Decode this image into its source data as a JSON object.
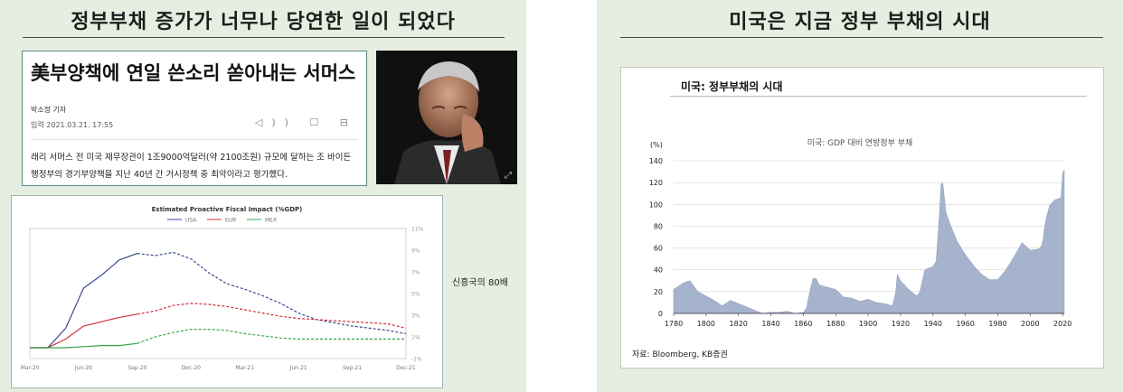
{
  "left_panel": {
    "title": "정부부채 증가가 너무나 당연한 일이 되었다",
    "article": {
      "headline": "美부양책에 연일 쓴소리 쏟아내는 서머스",
      "byline": "박소정 기자",
      "dateline": "입력 2021.03.21. 17:55",
      "tools": "◁)) ☐ ⊟",
      "body": "래리 서머스 전 미국 재무장관이 1조9000억달러(약 2100조원) 규모에 달하는 조 바이든 행정부의 경기부양책을 지난 40년 간 거시정책 중 최악이라고 평가했다."
    },
    "photo_expand_icon": "⤢",
    "side_note": "신흥국의 80배"
  },
  "right_panel": {
    "title": "미국은 지금 정부 부채의 시대",
    "chart_title": "미국: 정부부채의 시대",
    "source": "자료: Bloomberg, KB증권"
  },
  "colors": {
    "usa": "#3b4a8f",
    "eur": "#d1323b",
    "mex": "#3aa64a",
    "area": "#a6b3cc",
    "panel_bg": "#e5eee0"
  },
  "chart_data": [
    {
      "type": "line",
      "title": "Estimated Proactive Fiscal Impact (%GDP)",
      "x": [
        "Mar-20",
        "Apr-20",
        "May-20",
        "Jun-20",
        "Jul-20",
        "Aug-20",
        "Sep-20",
        "Oct-20",
        "Nov-20",
        "Dec-20",
        "Jan-21",
        "Feb-21",
        "Mar-21",
        "Apr-21",
        "May-21",
        "Jun-21",
        "Jul-21",
        "Aug-21",
        "Sep-21",
        "Oct-21",
        "Nov-21",
        "Dec-21"
      ],
      "xticks": [
        "Mar-20",
        "Jun-20",
        "Sep-20",
        "Dec-20",
        "Mar-21",
        "Jun-21",
        "Sep-21",
        "Dec-21"
      ],
      "ylim": [
        -1,
        11
      ],
      "yticks": [
        "11%",
        "9%",
        "7%",
        "5%",
        "3%",
        "1%",
        "-1%"
      ],
      "ytick_values": [
        11,
        9,
        7,
        5,
        3,
        1,
        -1
      ],
      "projection_from": "Sep-20",
      "series": [
        {
          "name": "USA",
          "values": [
            0,
            0,
            1.8,
            5.5,
            6.7,
            8.1,
            8.7,
            8.5,
            8.8,
            8.2,
            6.9,
            5.9,
            5.4,
            4.8,
            4.1,
            3.2,
            2.6,
            2.3,
            2.0,
            1.8,
            1.6,
            1.3
          ]
        },
        {
          "name": "EUR",
          "values": [
            0,
            0,
            0.8,
            2.0,
            2.4,
            2.8,
            3.1,
            3.4,
            3.9,
            4.1,
            4.0,
            3.8,
            3.5,
            3.2,
            2.9,
            2.7,
            2.6,
            2.5,
            2.4,
            2.3,
            2.2,
            1.8
          ]
        },
        {
          "name": "MEX",
          "values": [
            0,
            0,
            0,
            0.1,
            0.2,
            0.2,
            0.4,
            1.0,
            1.4,
            1.7,
            1.7,
            1.6,
            1.3,
            1.1,
            0.9,
            0.8,
            0.8,
            0.8,
            0.8,
            0.8,
            0.8,
            0.8
          ]
        }
      ]
    },
    {
      "type": "area",
      "title": "미국: GDP 대비 연방정부 부채",
      "ylabel": "(%)",
      "ylim": [
        0,
        140
      ],
      "yticks": [
        0,
        20,
        40,
        60,
        80,
        100,
        120,
        140
      ],
      "xlim": [
        1780,
        2021
      ],
      "xticks": [
        1780,
        1800,
        1820,
        1840,
        1860,
        1880,
        1900,
        1920,
        1940,
        1960,
        1980,
        2000,
        2020
      ],
      "x": [
        1780,
        1783,
        1786,
        1790,
        1795,
        1800,
        1805,
        1810,
        1812,
        1815,
        1820,
        1825,
        1830,
        1835,
        1840,
        1845,
        1850,
        1855,
        1860,
        1862,
        1864,
        1866,
        1868,
        1870,
        1875,
        1880,
        1885,
        1890,
        1895,
        1900,
        1905,
        1910,
        1915,
        1917,
        1918,
        1919,
        1920,
        1925,
        1930,
        1932,
        1935,
        1940,
        1942,
        1943,
        1944,
        1945,
        1946,
        1947,
        1948,
        1950,
        1955,
        1960,
        1965,
        1970,
        1975,
        1980,
        1985,
        1990,
        1995,
        2000,
        2005,
        2007,
        2008,
        2009,
        2010,
        2012,
        2015,
        2019,
        2020,
        2021
      ],
      "y": [
        22,
        25,
        28,
        30,
        20,
        16,
        12,
        7,
        9,
        12,
        9,
        6,
        3,
        0,
        1,
        1,
        2,
        0,
        1,
        5,
        20,
        32,
        32,
        26,
        24,
        22,
        15,
        14,
        11,
        13,
        10,
        9,
        7,
        19,
        36,
        33,
        30,
        22,
        16,
        20,
        40,
        43,
        48,
        70,
        91,
        118,
        120,
        107,
        93,
        84,
        66,
        54,
        44,
        36,
        31,
        31,
        40,
        52,
        65,
        58,
        59,
        62,
        68,
        80,
        88,
        99,
        104,
        106,
        128,
        132
      ]
    }
  ]
}
